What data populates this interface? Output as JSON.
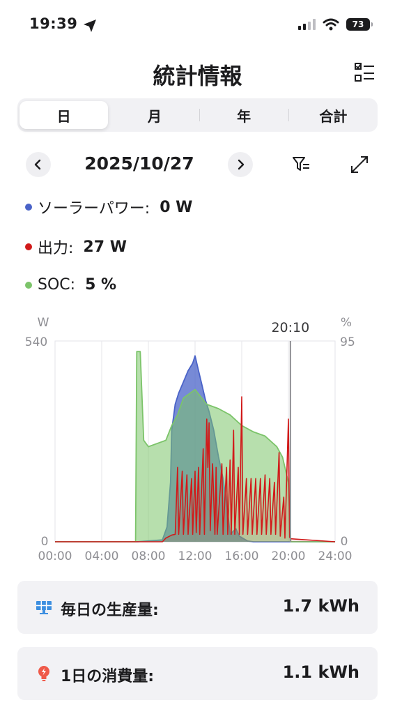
{
  "status_bar": {
    "time": "19:39",
    "battery": "73"
  },
  "header": {
    "title": "統計情報"
  },
  "tabs": [
    {
      "label": "日",
      "active": true
    },
    {
      "label": "月",
      "active": false
    },
    {
      "label": "年",
      "active": false
    },
    {
      "label": "合計",
      "active": false
    }
  ],
  "date_nav": {
    "date": "2025/10/27"
  },
  "legend": [
    {
      "label": "ソーラーパワー:",
      "value": "0 W",
      "color": "#4a63c8"
    },
    {
      "label": "出力:",
      "value": "27 W",
      "color": "#d11a1a"
    },
    {
      "label": "SOC:",
      "value": "5 %",
      "color": "#7cc46a"
    }
  ],
  "chart_data": {
    "type": "area",
    "left_unit": "W",
    "right_unit": "%",
    "left_axis": {
      "min": 0,
      "max": 540,
      "tick_labels": [
        "540",
        "0"
      ]
    },
    "right_axis": {
      "min": 0,
      "max": 95,
      "tick_labels": [
        "95",
        "0"
      ]
    },
    "x_axis": {
      "min": 0,
      "max": 24,
      "tick_labels": [
        "00:00",
        "04:00",
        "08:00",
        "12:00",
        "16:00",
        "20:00",
        "24:00"
      ]
    },
    "cursor": {
      "x": 20.17,
      "label": "20:10"
    },
    "series": [
      {
        "name": "ソーラーパワー",
        "axis": "left",
        "color": "#4a63c8",
        "points": [
          [
            0,
            0
          ],
          [
            7,
            0
          ],
          [
            9.2,
            5
          ],
          [
            9.6,
            40
          ],
          [
            9.9,
            160
          ],
          [
            10.0,
            300
          ],
          [
            10.3,
            370
          ],
          [
            10.6,
            400
          ],
          [
            11.0,
            430
          ],
          [
            11.4,
            460
          ],
          [
            11.8,
            480
          ],
          [
            12.0,
            500
          ],
          [
            12.3,
            460
          ],
          [
            12.6,
            420
          ],
          [
            12.9,
            380
          ],
          [
            13.2,
            350
          ],
          [
            13.6,
            300
          ],
          [
            14.0,
            230
          ],
          [
            14.4,
            170
          ],
          [
            14.8,
            80
          ],
          [
            15.0,
            20
          ],
          [
            15.5,
            35
          ],
          [
            15.8,
            15
          ],
          [
            16.5,
            2
          ],
          [
            17,
            0
          ],
          [
            24,
            0
          ]
        ]
      },
      {
        "name": "SOC",
        "axis": "right",
        "color": "#7cc46a",
        "points": [
          [
            0,
            0
          ],
          [
            6.9,
            0
          ],
          [
            7.0,
            90
          ],
          [
            7.3,
            90
          ],
          [
            7.6,
            48
          ],
          [
            8.0,
            45
          ],
          [
            9.5,
            48
          ],
          [
            10.0,
            55
          ],
          [
            10.5,
            60
          ],
          [
            11.0,
            68
          ],
          [
            12.0,
            72
          ],
          [
            13.0,
            65
          ],
          [
            14.0,
            63
          ],
          [
            15.0,
            60
          ],
          [
            16.0,
            55
          ],
          [
            17.0,
            52
          ],
          [
            18.0,
            50
          ],
          [
            19.0,
            45
          ],
          [
            19.5,
            40
          ],
          [
            20.0,
            28
          ],
          [
            20.17,
            5
          ],
          [
            20.2,
            0
          ],
          [
            24,
            0
          ]
        ]
      },
      {
        "name": "出力",
        "axis": "left",
        "color": "#d11a1a",
        "points": [
          [
            0,
            0
          ],
          [
            9.2,
            0
          ],
          [
            9.5,
            10
          ],
          [
            10.0,
            18
          ],
          [
            10.3,
            20
          ],
          [
            10.5,
            200
          ],
          [
            10.6,
            20
          ],
          [
            10.9,
            190
          ],
          [
            11.0,
            20
          ],
          [
            11.3,
            180
          ],
          [
            11.4,
            20
          ],
          [
            11.7,
            170
          ],
          [
            11.8,
            20
          ],
          [
            12.0,
            190
          ],
          [
            12.1,
            25
          ],
          [
            12.3,
            200
          ],
          [
            12.4,
            20
          ],
          [
            12.7,
            250
          ],
          [
            12.8,
            20
          ],
          [
            13.0,
            330
          ],
          [
            13.1,
            200
          ],
          [
            13.2,
            320
          ],
          [
            13.3,
            30
          ],
          [
            13.5,
            210
          ],
          [
            13.7,
            20
          ],
          [
            13.8,
            200
          ],
          [
            13.9,
            20
          ],
          [
            14.3,
            210
          ],
          [
            14.4,
            20
          ],
          [
            14.7,
            200
          ],
          [
            14.8,
            20
          ],
          [
            15.0,
            220
          ],
          [
            15.1,
            20
          ],
          [
            15.3,
            300
          ],
          [
            15.4,
            20
          ],
          [
            15.7,
            200
          ],
          [
            15.8,
            20
          ],
          [
            16.0,
            390
          ],
          [
            16.1,
            20
          ],
          [
            16.4,
            170
          ],
          [
            16.5,
            20
          ],
          [
            16.8,
            170
          ],
          [
            16.9,
            20
          ],
          [
            17.2,
            170
          ],
          [
            17.3,
            20
          ],
          [
            17.6,
            170
          ],
          [
            17.7,
            20
          ],
          [
            18.0,
            180
          ],
          [
            18.1,
            20
          ],
          [
            18.4,
            170
          ],
          [
            18.5,
            20
          ],
          [
            18.8,
            160
          ],
          [
            18.9,
            20
          ],
          [
            19.2,
            240
          ],
          [
            19.3,
            15
          ],
          [
            19.6,
            120
          ],
          [
            19.7,
            10
          ],
          [
            20.0,
            330
          ],
          [
            20.1,
            12
          ],
          [
            20.2,
            8
          ],
          [
            24,
            0
          ]
        ]
      }
    ]
  },
  "cards": [
    {
      "label": "毎日の生産量:",
      "value": "1.7 kWh"
    },
    {
      "label": "1日の消費量:",
      "value": "1.1 kWh"
    }
  ]
}
